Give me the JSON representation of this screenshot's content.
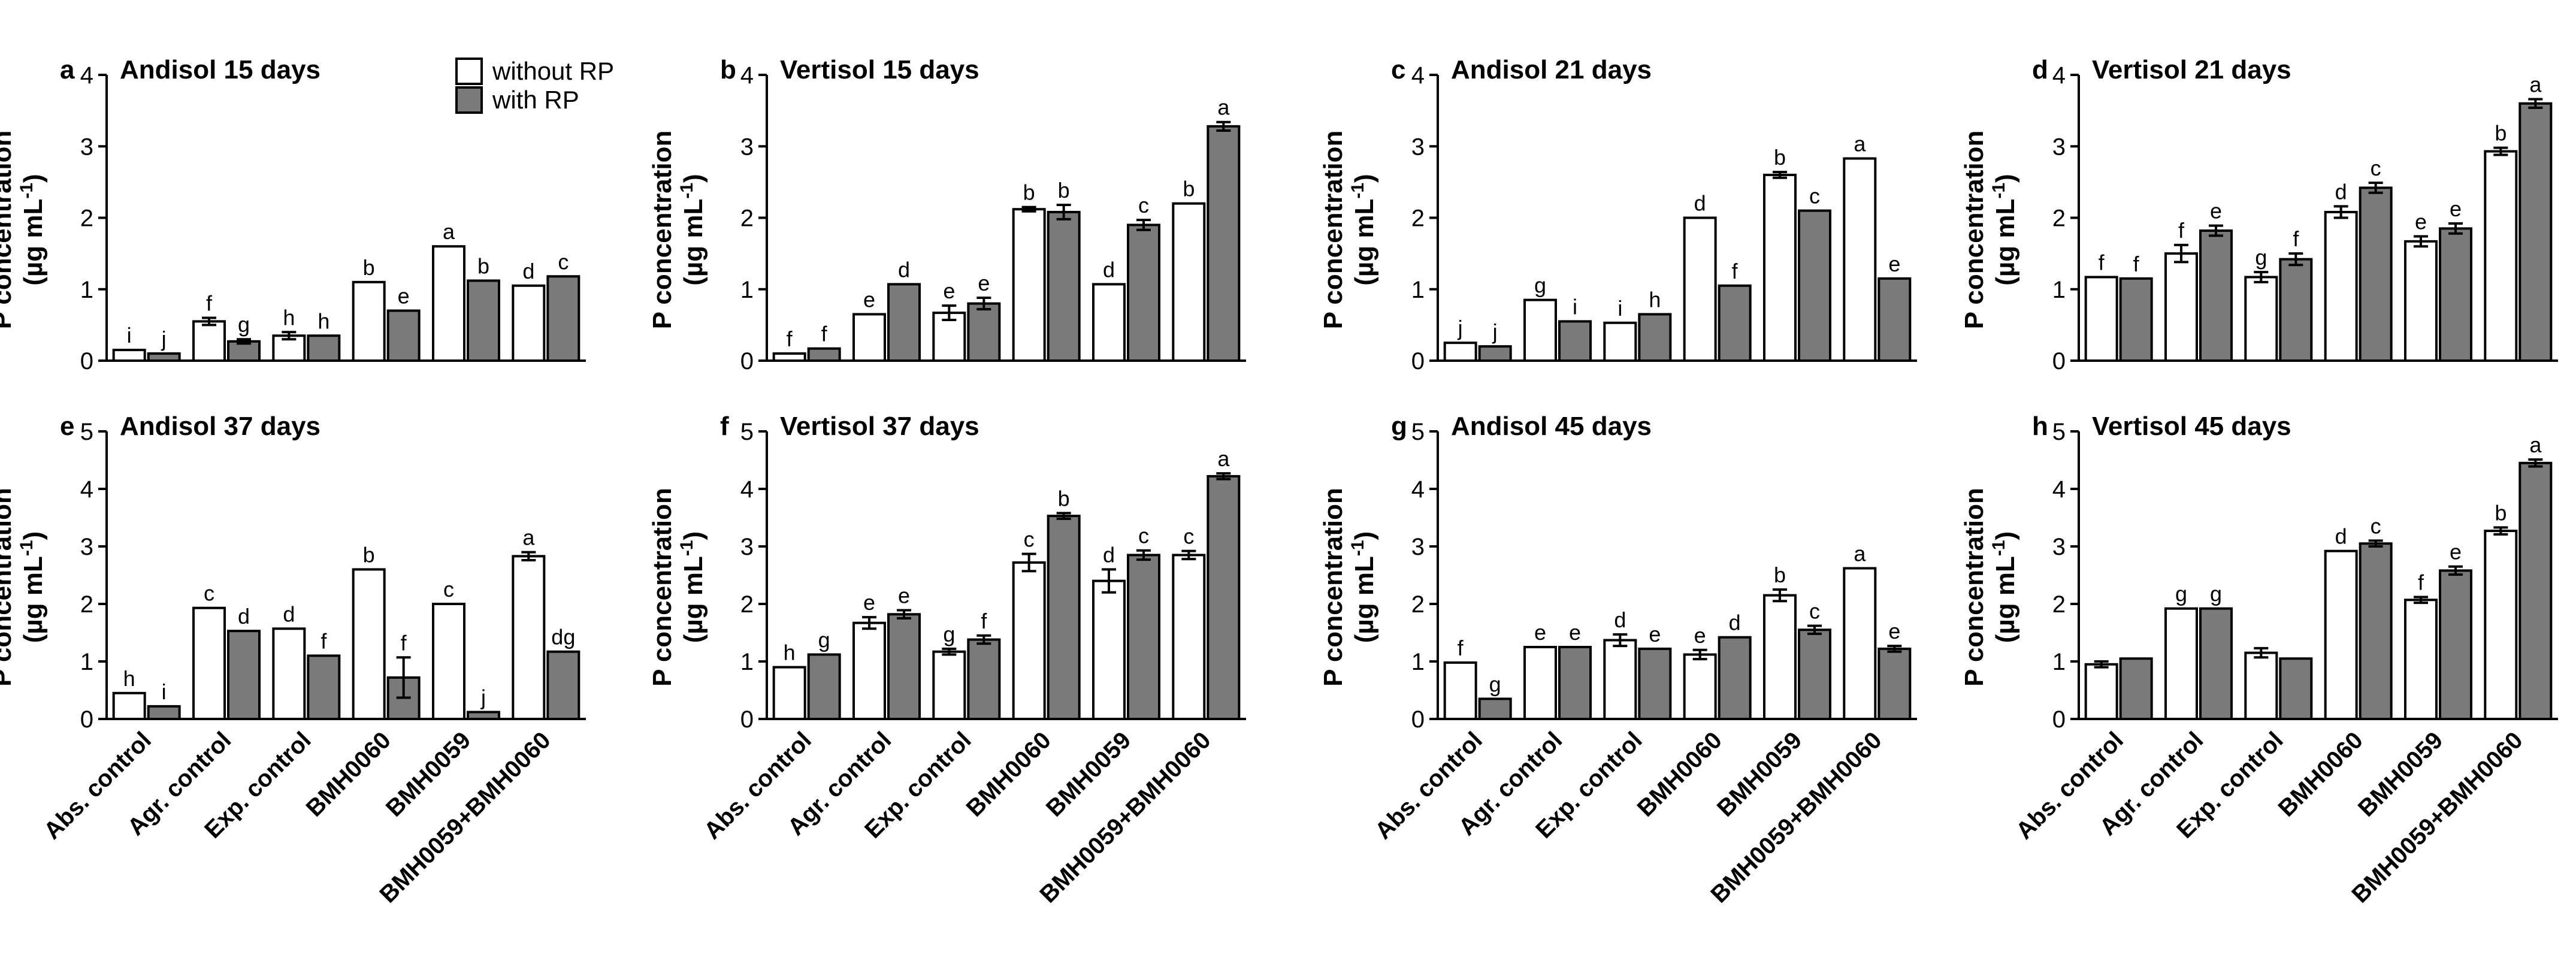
{
  "legend": {
    "without_label": "without RP",
    "with_label": "with RP",
    "colors": {
      "without": "#ffffff",
      "with": "#7a7a7a",
      "stroke": "#000000"
    }
  },
  "chart_data": [
    {
      "type": "bar",
      "panel": "a",
      "title": "Andisol 15 days",
      "ylabel": [
        "P concentration",
        "(µg mL",
        "-1",
        ")"
      ],
      "ylim": [
        0,
        4
      ],
      "yticks": [
        0,
        1,
        2,
        3,
        4
      ],
      "categories": [
        "Abs. control",
        "Agr. control",
        "Exp. control",
        "BMH0060",
        "BMH0059",
        "BMH0059+BMH0060"
      ],
      "series": [
        {
          "name": "without RP",
          "values": [
            0.15,
            0.55,
            0.35,
            1.1,
            1.6,
            1.05
          ],
          "errors": [
            0.0,
            0.05,
            0.05,
            0.0,
            0.0,
            0.0
          ],
          "letters": [
            "i",
            "f",
            "h",
            "b",
            "a",
            "d"
          ]
        },
        {
          "name": "with RP",
          "values": [
            0.1,
            0.27,
            0.35,
            0.7,
            1.12,
            1.18
          ],
          "errors": [
            0.0,
            0.03,
            0.0,
            0.0,
            0.0,
            0.0
          ],
          "letters": [
            "j",
            "g",
            "h",
            "e",
            "b",
            "c"
          ]
        }
      ]
    },
    {
      "type": "bar",
      "panel": "b",
      "title": "Vertisol 15 days",
      "ylabel": [
        "P concentration",
        "(µg mL",
        "-1",
        ")"
      ],
      "ylim": [
        0,
        4
      ],
      "yticks": [
        0,
        1,
        2,
        3,
        4
      ],
      "categories": [
        "Abs. control",
        "Agr. control",
        "Exp. control",
        "BMH0060",
        "BMH0059",
        "BMH0059+BMH0060"
      ],
      "series": [
        {
          "name": "without RP",
          "values": [
            0.1,
            0.65,
            0.67,
            2.12,
            1.07,
            2.2
          ],
          "errors": [
            0.0,
            0.0,
            0.1,
            0.03,
            0.0,
            0.0
          ],
          "letters": [
            "f",
            "e",
            "e",
            "b",
            "d",
            "b"
          ]
        },
        {
          "name": "with RP",
          "values": [
            0.17,
            1.07,
            0.8,
            2.08,
            1.9,
            3.28
          ],
          "errors": [
            0.0,
            0.0,
            0.08,
            0.1,
            0.07,
            0.06
          ],
          "letters": [
            "f",
            "d",
            "e",
            "b",
            "c",
            "a"
          ]
        }
      ]
    },
    {
      "type": "bar",
      "panel": "c",
      "title": "Andisol 21 days",
      "ylabel": [
        "P concentration",
        "(µg mL",
        "-1",
        ")"
      ],
      "ylim": [
        0,
        4
      ],
      "yticks": [
        0,
        1,
        2,
        3,
        4
      ],
      "categories": [
        "Abs. control",
        "Agr. control",
        "Exp. control",
        "BMH0060",
        "BMH0059",
        "BMH0059+BMH0060"
      ],
      "series": [
        {
          "name": "without RP",
          "values": [
            0.25,
            0.85,
            0.53,
            2.0,
            2.6,
            2.83
          ],
          "errors": [
            0.0,
            0.0,
            0.0,
            0.0,
            0.04,
            0.0
          ],
          "letters": [
            "j",
            "g",
            "i",
            "d",
            "b",
            "a"
          ]
        },
        {
          "name": "with RP",
          "values": [
            0.2,
            0.55,
            0.65,
            1.05,
            2.1,
            1.15
          ],
          "errors": [
            0.0,
            0.0,
            0.0,
            0.0,
            0.0,
            0.0
          ],
          "letters": [
            "j",
            "i",
            "h",
            "f",
            "c",
            "e"
          ]
        }
      ]
    },
    {
      "type": "bar",
      "panel": "d",
      "title": "Vertisol 21 days",
      "ylabel": [
        "P concentration",
        "(µg mL",
        "-1",
        ")"
      ],
      "ylim": [
        0,
        4
      ],
      "yticks": [
        0,
        1,
        2,
        3,
        4
      ],
      "categories": [
        "Abs. control",
        "Agr. control",
        "Exp. control",
        "BMH0060",
        "BMH0059",
        "BMH0059+BMH0060"
      ],
      "series": [
        {
          "name": "without RP",
          "values": [
            1.17,
            1.5,
            1.17,
            2.08,
            1.67,
            2.93
          ],
          "errors": [
            0.0,
            0.12,
            0.07,
            0.08,
            0.07,
            0.05
          ],
          "letters": [
            "f",
            "f",
            "g",
            "d",
            "e",
            "b"
          ]
        },
        {
          "name": "with RP",
          "values": [
            1.15,
            1.82,
            1.42,
            2.42,
            1.85,
            3.6
          ],
          "errors": [
            0.0,
            0.07,
            0.08,
            0.07,
            0.07,
            0.06
          ],
          "letters": [
            "f",
            "e",
            "f",
            "c",
            "e",
            "a"
          ]
        }
      ]
    },
    {
      "type": "bar",
      "panel": "e",
      "title": "Andisol 37 days",
      "ylabel": [
        "P concentration",
        "(µg mL",
        "-1",
        ")"
      ],
      "ylim": [
        0,
        5
      ],
      "yticks": [
        0,
        1,
        2,
        3,
        4,
        5
      ],
      "categories": [
        "Abs. control",
        "Agr. control",
        "Exp. control",
        "BMH0060",
        "BMH0059",
        "BMH0059+BMH0060"
      ],
      "series": [
        {
          "name": "without RP",
          "values": [
            0.45,
            1.93,
            1.57,
            2.6,
            2.0,
            2.83
          ],
          "errors": [
            0.0,
            0.0,
            0.0,
            0.0,
            0.0,
            0.07
          ],
          "letters": [
            "h",
            "c",
            "d",
            "b",
            "c",
            "a"
          ]
        },
        {
          "name": "with RP",
          "values": [
            0.22,
            1.53,
            1.1,
            0.72,
            0.12,
            1.17
          ],
          "errors": [
            0.0,
            0.0,
            0.0,
            0.35,
            0.0,
            0.0
          ],
          "letters": [
            "i",
            "d",
            "f",
            "f",
            "j",
            "dg"
          ]
        }
      ]
    },
    {
      "type": "bar",
      "panel": "f",
      "title": "Vertisol 37 days",
      "ylabel": [
        "P concentration",
        "(µg mL",
        "-1",
        ")"
      ],
      "ylim": [
        0,
        5
      ],
      "yticks": [
        0,
        1,
        2,
        3,
        4,
        5
      ],
      "categories": [
        "Abs. control",
        "Agr. control",
        "Exp. control",
        "BMH0060",
        "BMH0059",
        "BMH0059+BMH0060"
      ],
      "series": [
        {
          "name": "without RP",
          "values": [
            0.9,
            1.67,
            1.17,
            2.72,
            2.4,
            2.85
          ],
          "errors": [
            0.0,
            0.1,
            0.05,
            0.15,
            0.2,
            0.07
          ],
          "letters": [
            "h",
            "e",
            "g",
            "c",
            "d",
            "c"
          ]
        },
        {
          "name": "with RP",
          "values": [
            1.12,
            1.82,
            1.38,
            3.53,
            2.85,
            4.22
          ],
          "errors": [
            0.0,
            0.07,
            0.07,
            0.05,
            0.08,
            0.05
          ],
          "letters": [
            "g",
            "e",
            "f",
            "b",
            "c",
            "a"
          ]
        }
      ]
    },
    {
      "type": "bar",
      "panel": "g",
      "title": "Andisol 45 days",
      "ylabel": [
        "P concentration",
        "(µg mL",
        "-1",
        ")"
      ],
      "ylim": [
        0,
        5
      ],
      "yticks": [
        0,
        1,
        2,
        3,
        4,
        5
      ],
      "categories": [
        "Abs. control",
        "Agr. control",
        "Exp. control",
        "BMH0060",
        "BMH0059",
        "BMH0059+BMH0060"
      ],
      "series": [
        {
          "name": "without RP",
          "values": [
            0.98,
            1.25,
            1.37,
            1.12,
            2.15,
            2.62
          ],
          "errors": [
            0.0,
            0.0,
            0.1,
            0.08,
            0.1,
            0.0
          ],
          "letters": [
            "f",
            "e",
            "d",
            "e",
            "b",
            "a"
          ]
        },
        {
          "name": "with RP",
          "values": [
            0.35,
            1.25,
            1.22,
            1.42,
            1.55,
            1.22
          ],
          "errors": [
            0.0,
            0.0,
            0.0,
            0.0,
            0.07,
            0.05
          ],
          "letters": [
            "g",
            "e",
            "e",
            "d",
            "c",
            "e"
          ]
        }
      ]
    },
    {
      "type": "bar",
      "panel": "h",
      "title": "Vertisol 45 days",
      "ylabel": [
        "P concentration",
        "(µg mL",
        "-1",
        ")"
      ],
      "ylim": [
        0,
        5
      ],
      "yticks": [
        0,
        1,
        2,
        3,
        4,
        5
      ],
      "categories": [
        "Abs. control",
        "Agr. control",
        "Exp. control",
        "BMH0060",
        "BMH0059",
        "BMH0059+BMH0060"
      ],
      "series": [
        {
          "name": "without RP",
          "values": [
            0.95,
            1.92,
            1.15,
            2.92,
            2.07,
            3.27
          ],
          "errors": [
            0.05,
            0.0,
            0.08,
            0.0,
            0.05,
            0.06
          ],
          "letters": [
            "",
            "g",
            "",
            "d",
            "f",
            "b"
          ]
        },
        {
          "name": "with RP",
          "values": [
            1.05,
            1.92,
            1.05,
            3.05,
            2.58,
            4.45
          ],
          "errors": [
            0.0,
            0.0,
            0.0,
            0.05,
            0.07,
            0.06
          ],
          "letters": [
            "",
            "g",
            "",
            "c",
            "e",
            "a"
          ]
        }
      ]
    }
  ]
}
